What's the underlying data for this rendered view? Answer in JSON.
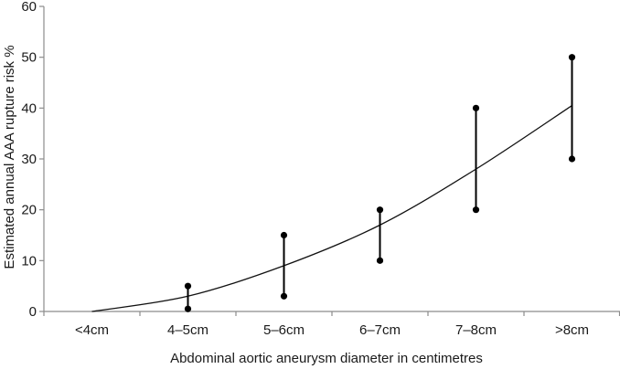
{
  "chart_data": {
    "type": "line",
    "title": "",
    "xlabel": "Abdominal aortic aneurysm diameter in centimetres",
    "ylabel": "Estimated annual AAA rupture risk %",
    "categories": [
      "<4cm",
      "4–5cm",
      "5–6cm",
      "6–7cm",
      "7–8cm",
      ">8cm"
    ],
    "ylim": [
      0,
      60
    ],
    "yticks": [
      0,
      10,
      20,
      30,
      40,
      50,
      60
    ],
    "grid": false,
    "legend": "none",
    "ranges": [
      {
        "category": "4–5cm",
        "low": 0.5,
        "high": 5
      },
      {
        "category": "5–6cm",
        "low": 3,
        "high": 15
      },
      {
        "category": "6–7cm",
        "low": 10,
        "high": 20
      },
      {
        "category": "7–8cm",
        "low": 20,
        "high": 40
      },
      {
        "category": ">8cm",
        "low": 30,
        "high": 50
      }
    ],
    "trend": [
      {
        "category": "<4cm",
        "value": 0
      },
      {
        "category": "4–5cm",
        "value": 3
      },
      {
        "category": "5–6cm",
        "value": 9
      },
      {
        "category": "6–7cm",
        "value": 17
      },
      {
        "category": "7–8cm",
        "value": 28
      },
      {
        "category": ">8cm",
        "value": 40.5
      }
    ]
  }
}
